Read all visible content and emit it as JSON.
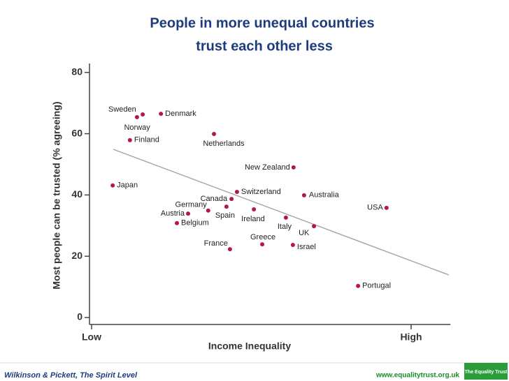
{
  "chart_data": {
    "type": "scatter",
    "title": [
      "People in more unequal countries",
      "trust each other less"
    ],
    "x_label": "Income Inequality",
    "y_label": "Most people can be trusted (% agreeing)",
    "xlim": [
      0,
      111
    ],
    "ylim": [
      0,
      82
    ],
    "xticks": [
      {
        "value": 0,
        "label": "Low"
      },
      {
        "value": 100,
        "label": "High"
      }
    ],
    "yticks": [
      0,
      20,
      40,
      60,
      80
    ],
    "color": "#b5174b",
    "points": {
      "labels": [
        "Sweden",
        "Norway",
        "Denmark",
        "Finland",
        "Netherlands",
        "New Zealand",
        "Japan",
        "Switzerland",
        "Australia",
        "USA",
        "Canada",
        "Germany",
        "Spain",
        "Ireland",
        "Austria",
        "Belgium",
        "Italy",
        "UK",
        "France",
        "Greece",
        "Israel",
        "Portugal"
      ],
      "x": [
        14.2,
        16.0,
        21.7,
        12.0,
        38.3,
        63.2,
        6.6,
        45.5,
        66.5,
        92.3,
        43.8,
        36.5,
        42.2,
        50.8,
        30.2,
        26.7,
        60.8,
        69.6,
        43.3,
        53.4,
        63.0,
        83.4
      ],
      "y": [
        65.4,
        66.3,
        66.5,
        57.9,
        59.9,
        49.0,
        43.1,
        41.0,
        39.9,
        35.8,
        38.7,
        34.9,
        36.2,
        35.3,
        33.9,
        30.8,
        32.6,
        29.8,
        22.3,
        23.9,
        23.7,
        10.3
      ]
    },
    "trendline": {
      "x": [
        6.8,
        111.8
      ],
      "y": [
        54.9,
        13.9
      ],
      "color": "#a0a0a0"
    }
  },
  "footer": {
    "source": "Wilkinson & Pickett, The Spirit Level",
    "url": "www.equalitytrust.org.uk",
    "logo": "The Equality Trust"
  }
}
